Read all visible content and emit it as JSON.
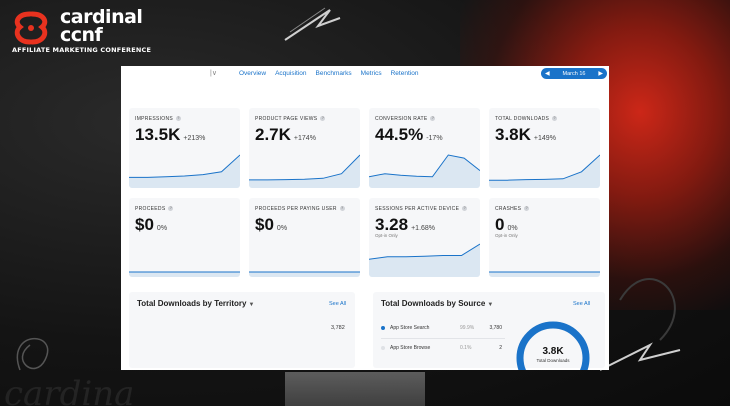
{
  "brand": {
    "name_line1": "cardinal",
    "name_line2": "ccnf",
    "tagline": "AFFILIATE MARKETING CONFERENCE",
    "accent": "#e8321f"
  },
  "nav": {
    "dropdown_glyph": "|∨",
    "tabs": [
      "Overview",
      "Acquisition",
      "Benchmarks",
      "Metrics",
      "Retention"
    ],
    "active_tab": "Overview",
    "date_label": "March 16",
    "accent": "#1a73c9"
  },
  "cards": [
    {
      "label": "IMPRESSIONS",
      "value": "13.5K",
      "delta": "+213%",
      "sub": "",
      "trend": [
        2,
        2,
        2.2,
        2.5,
        3,
        4,
        10
      ]
    },
    {
      "label": "PRODUCT PAGE VIEWS",
      "value": "2.7K",
      "delta": "+174%",
      "sub": "",
      "trend": [
        1,
        1,
        1.1,
        1.2,
        1.5,
        3,
        9
      ]
    },
    {
      "label": "CONVERSION RATE",
      "value": "44.5%",
      "delta": "-17%",
      "sub": "",
      "trend": [
        2,
        3,
        2.5,
        2.2,
        2,
        9,
        8,
        4
      ]
    },
    {
      "label": "TOTAL DOWNLOADS",
      "value": "3.8K",
      "delta": "+149%",
      "sub": "",
      "trend": [
        1,
        1,
        1.2,
        1.3,
        1.5,
        4,
        10
      ]
    },
    {
      "label": "PROCEEDS",
      "value": "$0",
      "delta": "0%",
      "sub": "",
      "trend": [
        0,
        0,
        0,
        0,
        0,
        0,
        0
      ]
    },
    {
      "label": "PROCEEDS PER PAYING USER",
      "value": "$0",
      "delta": "0%",
      "sub": "",
      "trend": [
        0,
        0,
        0,
        0,
        0,
        0,
        0
      ]
    },
    {
      "label": "SESSIONS PER ACTIVE DEVICE",
      "value": "3.28",
      "delta": "+1.68%",
      "sub": "Opt-in Only",
      "trend": [
        5,
        6,
        6,
        6.2,
        6.5,
        6.5,
        11
      ]
    },
    {
      "label": "CRASHES",
      "value": "0",
      "delta": "0%",
      "sub": "Opt-in Only",
      "trend": [
        0,
        0,
        0,
        0,
        0,
        0,
        0
      ]
    }
  ],
  "territory": {
    "title": "Total Downloads by Territory",
    "see_all": "See All",
    "value": "3,782"
  },
  "source": {
    "title": "Total Downloads by Source",
    "see_all": "See All",
    "rows": [
      {
        "name": "App Store Search",
        "pct": "99.9%",
        "count": "3,780",
        "color": "#1a73c9"
      },
      {
        "name": "App Store Browse",
        "pct": "0.1%",
        "count": "2",
        "color": "#dfe2e6"
      }
    ],
    "total": "3.8K",
    "total_label": "Total Downloads",
    "share": 0.999
  }
}
